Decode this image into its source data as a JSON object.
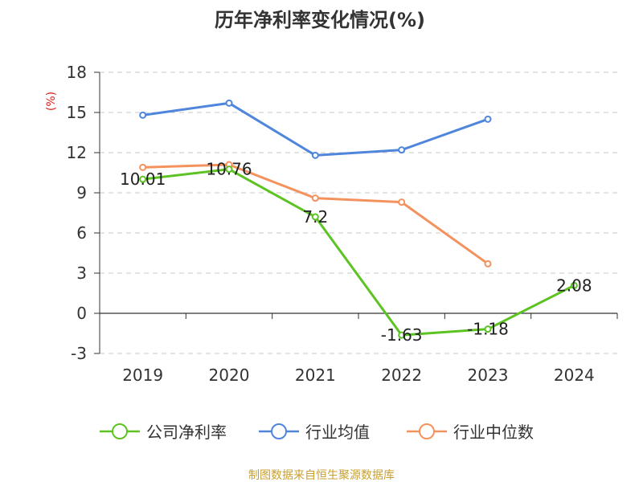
{
  "chart_data": {
    "type": "line",
    "title": "历年净利率变化情况(%)",
    "ylabel": "(%)",
    "categories": [
      "2019",
      "2020",
      "2021",
      "2022",
      "2023",
      "2024"
    ],
    "ylim": [
      -3,
      18
    ],
    "yticks": [
      "18",
      "15",
      "12",
      "9",
      "6",
      "3",
      "0",
      "-3"
    ],
    "grid": true,
    "legend_position": "bottom",
    "series": [
      {
        "name": "公司净利率",
        "color": "#5cc323",
        "values": [
          10.01,
          10.76,
          7.2,
          -1.63,
          -1.18,
          2.08
        ],
        "labels": [
          "10.01",
          "10.76",
          "7.2",
          "-1.63",
          "-1.18",
          "2.08"
        ]
      },
      {
        "name": "行业均值",
        "color": "#4f86dc",
        "values": [
          14.8,
          15.7,
          11.8,
          12.2,
          14.5,
          null
        ]
      },
      {
        "name": "行业中位数",
        "color": "#f4925e",
        "values": [
          10.9,
          11.1,
          8.6,
          8.3,
          3.7,
          null
        ]
      }
    ]
  },
  "ylabel_color": "#e02020",
  "source": {
    "text": "制图数据来自恒生聚源数据库",
    "color": "#c8a030"
  }
}
